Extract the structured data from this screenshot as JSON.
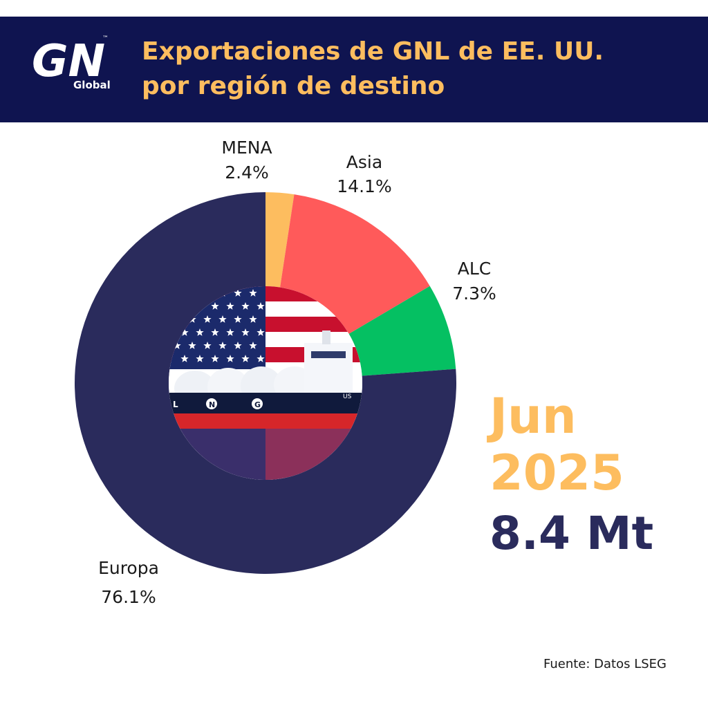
{
  "header": {
    "title_line1": "Exportaciones de GNL de EE. UU.",
    "title_line2": "por región de destino",
    "logo_main": "GN",
    "logo_sub": "Global",
    "logo_tm": "™",
    "bg_color": "#0f1450",
    "title_color": "#fdbd5f"
  },
  "center_image": {
    "icon": "us-flag-lng-tanker-icon",
    "hull_letters": [
      "L",
      "N",
      "G"
    ],
    "hull_mark": "US"
  },
  "summary": {
    "month": "Jun",
    "year": "2025",
    "total": "8.4 Mt"
  },
  "source": "Fuente: Datos LSEG",
  "chart_data": {
    "type": "pie",
    "donut": true,
    "categories": [
      "MENA",
      "Asia",
      "ALC",
      "Europa"
    ],
    "values": [
      2.4,
      14.1,
      7.3,
      76.1
    ],
    "labels": [
      "2.4%",
      "14.1%",
      "7.3%",
      "76.1%"
    ],
    "colors": [
      "#fdbd5f",
      "#ff5a5a",
      "#05c062",
      "#2a2b5c"
    ],
    "unit": "%"
  }
}
